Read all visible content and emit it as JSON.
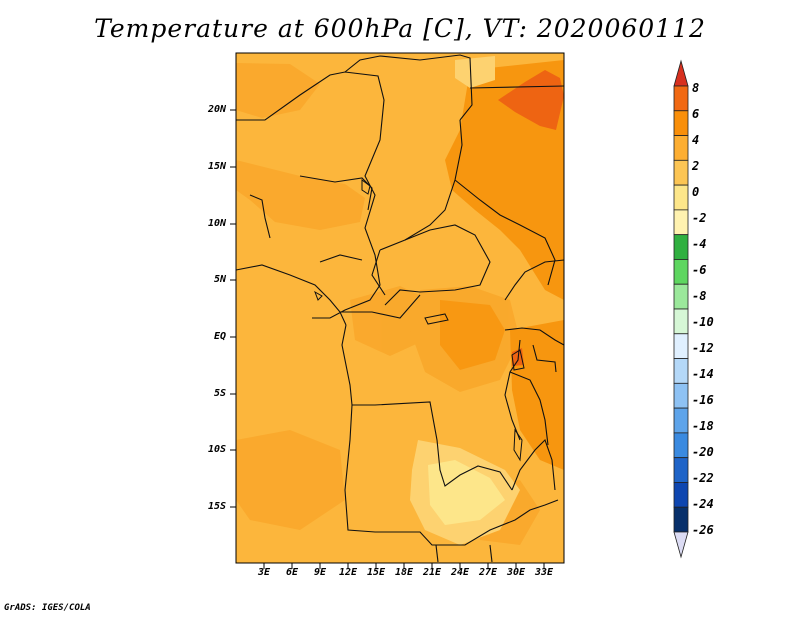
{
  "title": "Temperature at 600hPa [C], VT: 2020060112",
  "credit": "GrADS: IGES/COLA",
  "lat_ticks": [
    "20N",
    "15N",
    "10N",
    "5N",
    "EQ",
    "5S",
    "10S",
    "15S"
  ],
  "lon_ticks": [
    "3E",
    "6E",
    "9E",
    "12E",
    "15E",
    "18E",
    "21E",
    "24E",
    "27E",
    "30E",
    "33E"
  ],
  "colorbar": {
    "labels": [
      "8",
      "6",
      "4",
      "2",
      "0",
      "-2",
      "-4",
      "-6",
      "-8",
      "-10",
      "-12",
      "-14",
      "-16",
      "-18",
      "-20",
      "-22",
      "-24",
      "-26"
    ],
    "colors": [
      "#d7301f",
      "#f16913",
      "#f98f0a",
      "#fdae32",
      "#fcc554",
      "#fde68a",
      "#fff2b0",
      "#30b040",
      "#5ed660",
      "#9be89b",
      "#d6f7d6",
      "#e0f0ff",
      "#b4d8f8",
      "#8ec2f4",
      "#5ea4ea",
      "#3a8ae0",
      "#1f64c8",
      "#0e46b0",
      "#08306b",
      "#dcdcf4"
    ]
  },
  "map": {
    "region": "Central Africa",
    "variable": "Temperature",
    "level": "600hPa",
    "units": "C",
    "valid_time": "2020060112"
  }
}
